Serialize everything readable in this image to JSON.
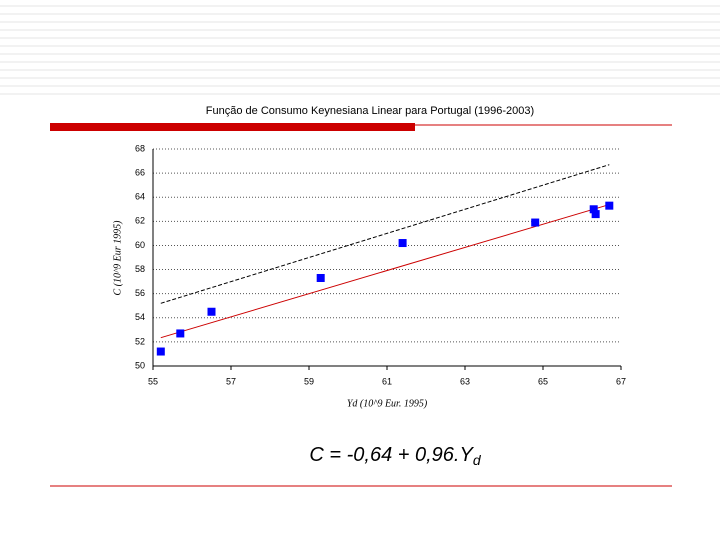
{
  "chart_data": {
    "type": "scatter",
    "title": "Função de Consumo Keynesiana Linear para Portugal (1996-2003)",
    "x_label": "Yd (10^9 Eur. 1995)",
    "y_label": "C (10^9 Eur 1995)",
    "x": [
      55.2,
      55.7,
      56.5,
      59.3,
      61.4,
      64.8,
      66.3,
      66.35,
      66.7
    ],
    "values": [
      51.2,
      52.7,
      54.5,
      57.3,
      60.2,
      61.9,
      63.0,
      62.6,
      63.3
    ],
    "color": "#0000ff",
    "fit_line": {
      "x": [
        55.2,
        66.7
      ],
      "values": [
        52.35,
        63.39
      ],
      "color": "#cc0000"
    },
    "reference_line": {
      "x": [
        55.2,
        66.7
      ],
      "values": [
        55.2,
        66.7
      ],
      "color": "#000000"
    },
    "xlim": [
      55,
      67
    ],
    "xticks": [
      55,
      57,
      59,
      61,
      63,
      65,
      67
    ],
    "ylim": [
      50,
      68
    ],
    "yticks": [
      50,
      52,
      54,
      56,
      58,
      60,
      62,
      64,
      66,
      68
    ],
    "grid": true
  },
  "equation": "C = -0,64 + 0,96.Y",
  "equation_subscript": "d"
}
